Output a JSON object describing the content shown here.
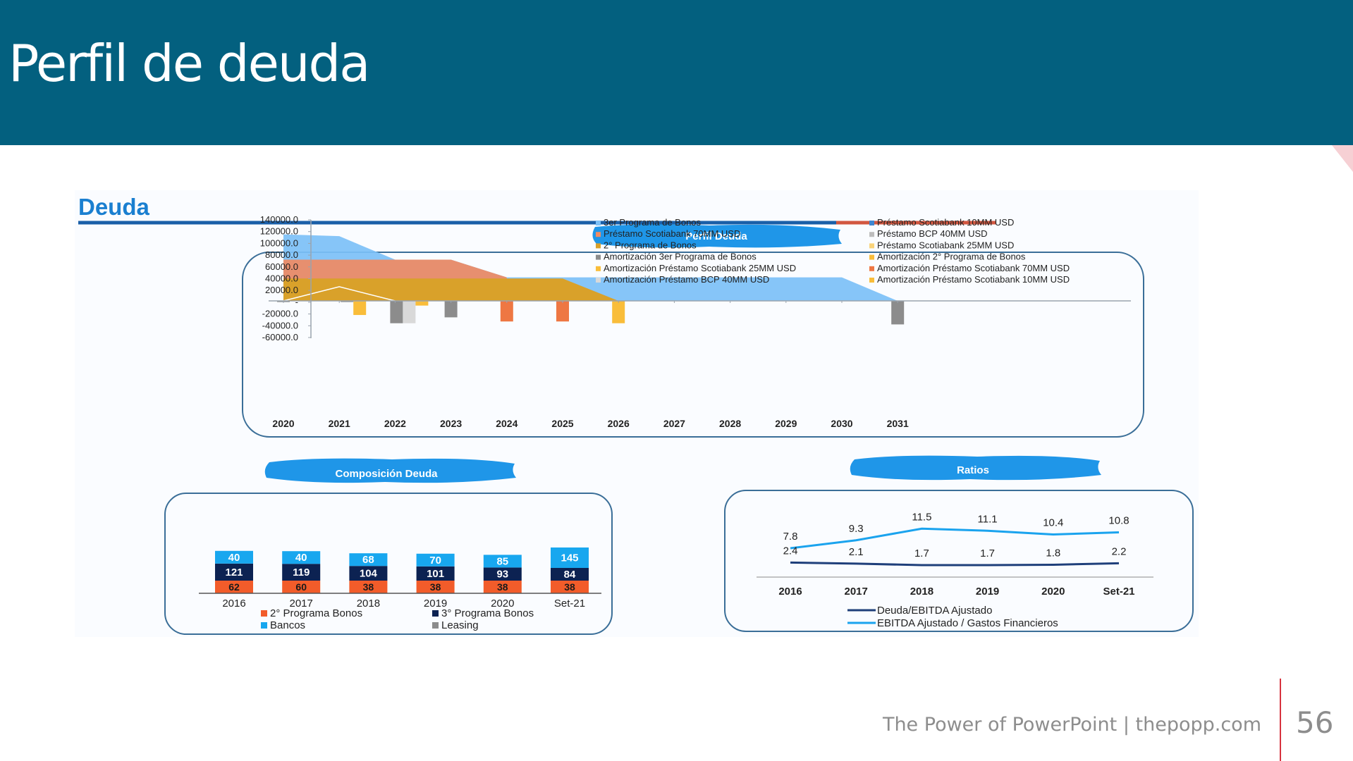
{
  "slide": {
    "title": "Perfil de deuda",
    "footer": "The Power of PowerPoint | thepopp.com",
    "page_number": "56"
  },
  "colors": {
    "header_bg": "#03607f",
    "accent_line": "#d7333e",
    "section_title": "#1a7fd0",
    "banner_blue": "#1f96e8",
    "bonos_3": "#7cc0f7",
    "scotiabank_70": "#f08a63",
    "bonos_2": "#d9a12a",
    "amort_3er": "#8c8c8c",
    "amort_scotia_25": "#f9bd3a",
    "amort_bcp_40": "#d9d9d9",
    "amort_2do": "#f9bd3a",
    "amort_scotia_70": "#ee7743",
    "bancos": "#18a7ef",
    "bonos3_navy": "#0c2252",
    "bonos2_orange": "#f25c2a",
    "ratio_line1": "#1f3f7a",
    "ratio_line2": "#1aa3ee"
  },
  "panel": {
    "heading": "Deuda",
    "banner_perfil": "Perfil Deuda",
    "banner_composicion": "Composición Deuda",
    "banner_ratios": "Ratios"
  },
  "chart_data": [
    {
      "type": "area",
      "title": "Perfil Deuda",
      "x": [
        "2020",
        "2021",
        "2022",
        "2023",
        "2024",
        "2025",
        "2026",
        "2027",
        "2028",
        "2029",
        "2030",
        "2031"
      ],
      "yticks": [
        "140000.0",
        "120000.0",
        "100000.0",
        "80000.0",
        "60000.0",
        "40000.0",
        "20000.0",
        "-",
        "-20000.0",
        "-40000.0",
        "-60000.0"
      ],
      "ylim": [
        -60000,
        140000
      ],
      "legend": [
        "3er Programa de Bonos",
        "Préstamo Scotiabank 10MM USD",
        "Préstamo Scotiabank 70MM USD",
        "Préstamo BCP 40MM USD",
        "2° Programa de Bonos",
        "Préstamo Scotiabank 25MM USD",
        "Amortización 3er Programa de Bonos",
        "Amortización 2° Programa de Bonos",
        "Amortización Préstamo Scotiabank 25MM USD",
        "Amortización Préstamo Scotiabank 70MM USD",
        "Amortización Préstamo BCP 40MM USD",
        "Amortización Préstamo Scotiabank 10MM USD"
      ],
      "stacks": [
        {
          "name": "3er Programa de Bonos",
          "x": [
            "2020",
            "2021",
            "2022",
            "2023",
            "2024",
            "2025",
            "2026",
            "2027",
            "2028",
            "2029",
            "2030",
            "2031"
          ],
          "values": [
            113000,
            110000,
            70000,
            70000,
            40000,
            40000,
            40000,
            40000,
            40000,
            40000,
            40000,
            0
          ]
        },
        {
          "name": "Préstamo Scotiabank 70MM USD",
          "x": [
            "2020",
            "2021",
            "2022",
            "2023",
            "2024"
          ],
          "values": [
            70000,
            70000,
            70000,
            70000,
            40000
          ]
        },
        {
          "name": "2° Programa de Bonos",
          "x": [
            "2020",
            "2021",
            "2022",
            "2023",
            "2024",
            "2025",
            "2026"
          ],
          "values": [
            38000,
            38000,
            38000,
            38000,
            38000,
            38000,
            0
          ]
        },
        {
          "name": "Préstamo Scotiabank 25MM USD",
          "x": [
            "2020",
            "2021",
            "2022"
          ],
          "values": [
            0,
            24000,
            0
          ]
        }
      ],
      "bars": [
        {
          "name": "Amortización 3er Programa de Bonos",
          "x": "2020",
          "value": -2000
        },
        {
          "name": "Amortización 3er Programa de Bonos",
          "x": "2021",
          "value": -2000
        },
        {
          "name": "Amortización 2° Programa de Bonos",
          "x": "2021",
          "value": -24000
        },
        {
          "name": "Amortización 3er Programa de Bonos",
          "x": "2022",
          "value": -38000
        },
        {
          "name": "Amortización Préstamo BCP 40MM USD",
          "x": "2022",
          "value": -38000
        },
        {
          "name": "Amortización Préstamo Scotiabank 25MM USD",
          "x": "2022",
          "value": -8000
        },
        {
          "name": "Amortización 3er Programa de Bonos",
          "x": "2023",
          "value": -28000
        },
        {
          "name": "Amortización Préstamo Scotiabank 70MM USD",
          "x": "2024",
          "value": -35000
        },
        {
          "name": "Amortización Préstamo Scotiabank 70MM USD",
          "x": "2025",
          "value": -35000
        },
        {
          "name": "Amortización 2° Programa de Bonos",
          "x": "2026",
          "value": -38000
        },
        {
          "name": "Amortización 3er Programa de Bonos",
          "x": "2031",
          "value": -40000
        }
      ]
    },
    {
      "type": "bar",
      "title": "Composición Deuda",
      "categories": [
        "2016",
        "2017",
        "2018",
        "2019",
        "2020",
        "Set-21"
      ],
      "series": [
        {
          "name": "2° Programa Bonos",
          "values": [
            62,
            60,
            38,
            38,
            38,
            38
          ]
        },
        {
          "name": "3° Programa Bonos",
          "values": [
            121,
            119,
            104,
            101,
            93,
            84
          ]
        },
        {
          "name": "Bancos",
          "values": [
            40,
            40,
            68,
            70,
            85,
            145
          ]
        },
        {
          "name": "Leasing",
          "values": [
            0,
            0,
            0,
            0,
            0,
            0
          ]
        }
      ],
      "legend": [
        "2° Programa Bonos",
        "3° Programa Bonos",
        "Bancos",
        "Leasing"
      ]
    },
    {
      "type": "line",
      "title": "Ratios",
      "categories": [
        "2016",
        "2017",
        "2018",
        "2019",
        "2020",
        "Set-21"
      ],
      "series": [
        {
          "name": "Deuda/EBITDA Ajustado",
          "values": [
            2.4,
            2.1,
            1.7,
            1.7,
            1.8,
            2.2
          ]
        },
        {
          "name": "EBITDA Ajustado / Gastos Financieros",
          "values": [
            7.8,
            9.3,
            11.5,
            11.1,
            10.4,
            10.8
          ]
        }
      ]
    }
  ]
}
